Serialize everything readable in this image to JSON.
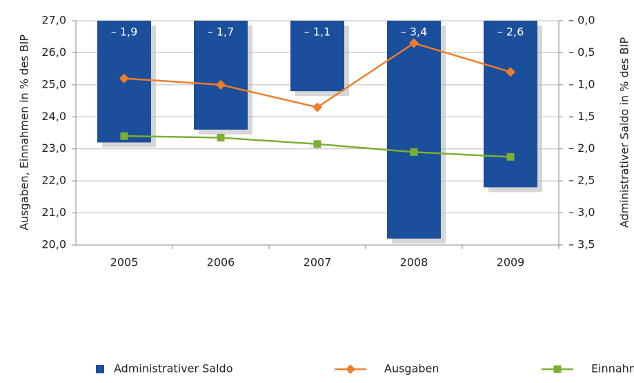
{
  "chart_data": {
    "type": "combo",
    "categories": [
      "2005",
      "2006",
      "2007",
      "2008",
      "2009"
    ],
    "series": [
      {
        "name": "Administrativer Saldo",
        "type": "bar",
        "axis": "y2",
        "color": "#1b4f9c",
        "values": [
          -1.9,
          -1.7,
          -1.1,
          -3.4,
          -2.6
        ],
        "value_labels": [
          "– 1,9",
          "– 1,7",
          "– 1,1",
          "– 3,4",
          "– 2,6"
        ]
      },
      {
        "name": "Ausgaben",
        "type": "line",
        "color": "#f07d2a",
        "marker": "diamond",
        "values": [
          25.2,
          25.0,
          24.3,
          26.3,
          25.4
        ]
      },
      {
        "name": "Einnahmen",
        "type": "line",
        "color": "#7aaf32",
        "marker": "square",
        "values": [
          23.4,
          23.35,
          23.15,
          22.9,
          22.75
        ]
      }
    ],
    "ylabel": "Ausgaben, Einnahmen in % des BIP",
    "y2label": "Administrativer Saldo in % des BIP",
    "ylim": [
      20,
      27
    ],
    "yticks": [
      {
        "value": 20,
        "label": "20,0"
      },
      {
        "value": 21,
        "label": "21,0"
      },
      {
        "value": 22,
        "label": "22,0"
      },
      {
        "value": 23,
        "label": "23,0"
      },
      {
        "value": 24,
        "label": "24,0"
      },
      {
        "value": 25,
        "label": "25,0"
      },
      {
        "value": 26,
        "label": "26,0"
      },
      {
        "value": 27,
        "label": "27,0"
      }
    ],
    "y2lim": [
      -3.5,
      0
    ],
    "y2ticks": [
      {
        "value": -3.5,
        "label": "– 3,5"
      },
      {
        "value": -3,
        "label": "– 3,0"
      },
      {
        "value": -2.5,
        "label": "– 2,5"
      },
      {
        "value": -2,
        "label": "– 2,0"
      },
      {
        "value": -1.5,
        "label": "– 1,5"
      },
      {
        "value": -1,
        "label": "– 1,0"
      },
      {
        "value": -0.5,
        "label": "– 0,5"
      },
      {
        "value": 0,
        "label": "– 0,0"
      }
    ],
    "grid": true,
    "legend": "bottom"
  }
}
